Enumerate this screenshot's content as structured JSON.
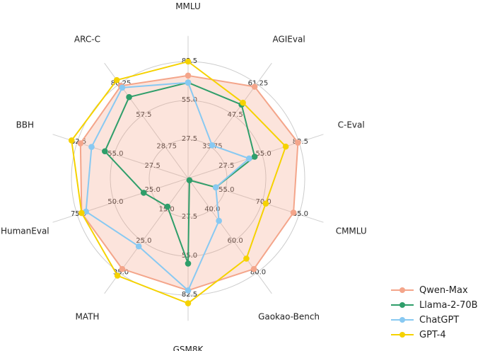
{
  "chart_data": {
    "type": "radar",
    "axes": [
      "MMLU",
      "AGIEval",
      "C-Eval",
      "CMMLU",
      "Gaokao-Bench",
      "GSM8K",
      "MATH",
      "HumanEval",
      "BBH",
      "ARC-C"
    ],
    "tick_labels": [
      [
        "27.5",
        "55.0",
        "82.5"
      ],
      [
        "33.75",
        "47.5",
        "61.25"
      ],
      [
        "27.5",
        "55.0",
        "82.5"
      ],
      [
        "55.0",
        "70.0",
        "85.0"
      ],
      [
        "40.0",
        "60.0",
        "80.0"
      ],
      [
        "27.5",
        "55.0",
        "82.5"
      ],
      [
        "15.0",
        "25.0",
        "35.0"
      ],
      [
        "25.0",
        "50.0",
        "75.0"
      ],
      [
        "27.5",
        "55.0",
        "82.5"
      ],
      [
        "28.75",
        "57.5",
        "86.25"
      ]
    ],
    "series": [
      {
        "name": "Qwen-Max",
        "color": "#f4a58a",
        "fill": true,
        "values": [
          0.88,
          0.97,
          0.99,
          0.95,
          0.96,
          0.96,
          0.96,
          0.96,
          0.97,
          0.98
        ]
      },
      {
        "name": "Llama-2-70B",
        "color": "#2f9e6a",
        "fill": false,
        "values": [
          0.82,
          0.78,
          0.6,
          0.25,
          0.02,
          0.73,
          0.3,
          0.4,
          0.75,
          0.86
        ]
      },
      {
        "name": "ChatGPT",
        "color": "#88c9f2",
        "fill": false,
        "values": [
          0.82,
          0.35,
          0.55,
          0.25,
          0.45,
          0.96,
          0.72,
          0.92,
          0.87,
          0.96
        ]
      },
      {
        "name": "GPT-4",
        "color": "#f5d200",
        "fill": false,
        "values": [
          1.0,
          0.8,
          0.88,
          0.7,
          0.85,
          1.07,
          1.03,
          0.96,
          1.05,
          1.04
        ]
      }
    ]
  }
}
